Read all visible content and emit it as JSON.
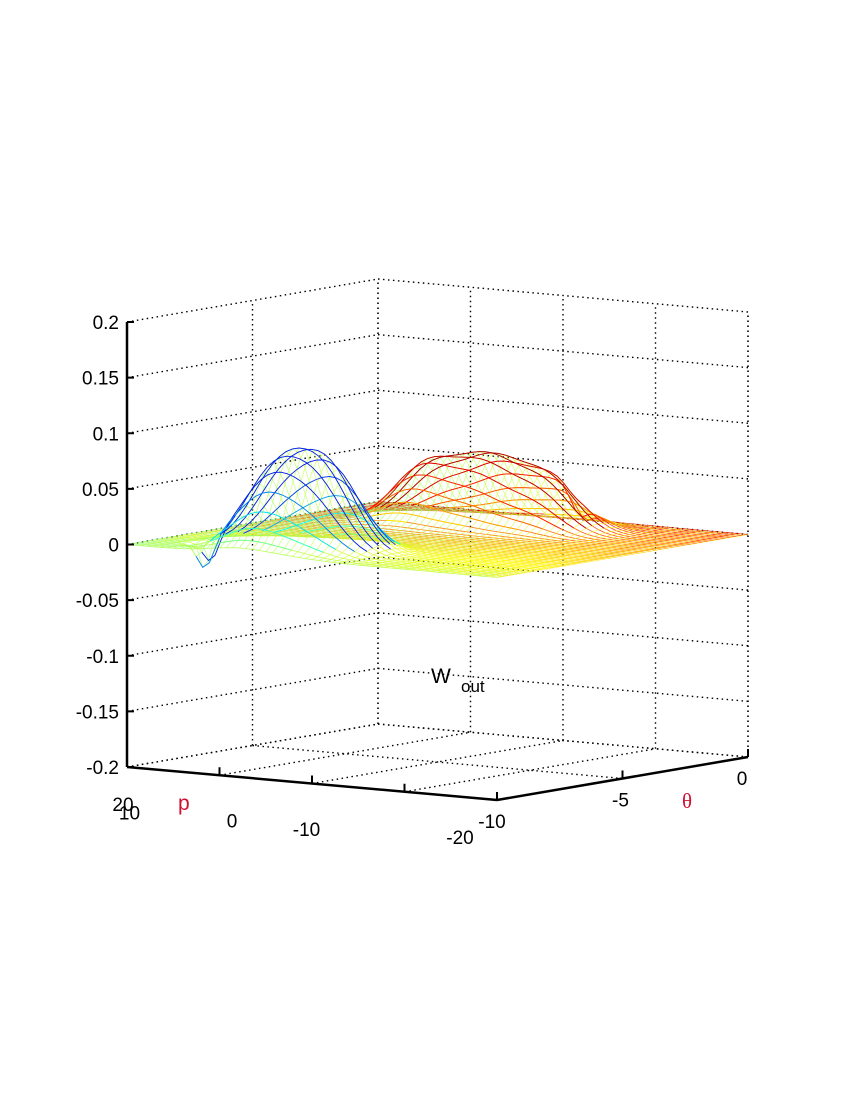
{
  "chart_data": {
    "type": "surface-mesh",
    "title": "",
    "annotation": {
      "main": "W",
      "sub": "out"
    },
    "xlabel": "p",
    "ylabel": "θ",
    "zlabel": "",
    "xlim": [
      -20,
      20
    ],
    "ylim": [
      -10,
      0
    ],
    "zlim": [
      -0.2,
      0.2
    ],
    "xticks": [
      "20",
      "10",
      "0",
      "-10",
      "-20"
    ],
    "yticks": [
      "-10",
      "-5",
      "0"
    ],
    "zticks": [
      "0.2",
      "0.15",
      "0.1",
      "0.05",
      "0",
      "-0.05",
      "-0.1",
      "-0.15",
      "-0.2"
    ],
    "grid": true,
    "colormap": "jet",
    "axis_label_color": "#d01030",
    "peaks": [
      {
        "p": 8,
        "theta": -8.5,
        "height": 0.065
      },
      {
        "p": 3,
        "theta": -8.2,
        "height": 0.068
      },
      {
        "p": 8,
        "theta": -2.5,
        "height": 0.05
      },
      {
        "p": 2,
        "theta": -2.2,
        "height": 0.055
      },
      {
        "p": -4,
        "theta": -2.0,
        "height": 0.045
      }
    ],
    "dips": [
      {
        "p": 14,
        "theta": -9.0,
        "depth": -0.03
      },
      {
        "p": -6,
        "theta": -1.5,
        "depth": -0.02
      }
    ]
  }
}
